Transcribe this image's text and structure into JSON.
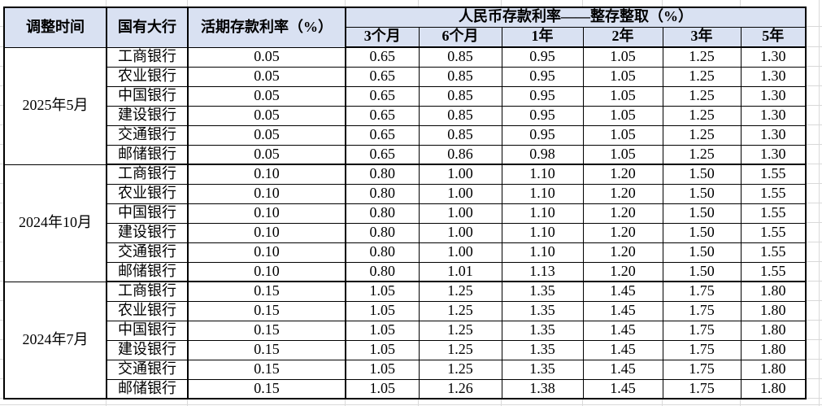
{
  "chart_data": {
    "type": "table",
    "title": "",
    "header_group": "人民币存款利率——整存整取（%）",
    "columns": [
      "调整时间",
      "国有大行",
      "活期存款利率（%）",
      "3个月",
      "6个月",
      "1年",
      "2年",
      "3年",
      "5年"
    ],
    "groups": [
      {
        "period": "2025年5月",
        "rows": [
          {
            "bank": "工商银行",
            "demand": "0.05",
            "terms": [
              "0.65",
              "0.85",
              "0.95",
              "1.05",
              "1.25",
              "1.30"
            ]
          },
          {
            "bank": "农业银行",
            "demand": "0.05",
            "terms": [
              "0.65",
              "0.85",
              "0.95",
              "1.05",
              "1.25",
              "1.30"
            ]
          },
          {
            "bank": "中国银行",
            "demand": "0.05",
            "terms": [
              "0.65",
              "0.85",
              "0.95",
              "1.05",
              "1.25",
              "1.30"
            ]
          },
          {
            "bank": "建设银行",
            "demand": "0.05",
            "terms": [
              "0.65",
              "0.85",
              "0.95",
              "1.05",
              "1.25",
              "1.30"
            ]
          },
          {
            "bank": "交通银行",
            "demand": "0.05",
            "terms": [
              "0.65",
              "0.85",
              "0.95",
              "1.05",
              "1.25",
              "1.30"
            ]
          },
          {
            "bank": "邮储银行",
            "demand": "0.05",
            "terms": [
              "0.65",
              "0.86",
              "0.98",
              "1.05",
              "1.25",
              "1.30"
            ]
          }
        ]
      },
      {
        "period": "2024年10月",
        "rows": [
          {
            "bank": "工商银行",
            "demand": "0.10",
            "terms": [
              "0.80",
              "1.00",
              "1.10",
              "1.20",
              "1.50",
              "1.55"
            ]
          },
          {
            "bank": "农业银行",
            "demand": "0.10",
            "terms": [
              "0.80",
              "1.00",
              "1.10",
              "1.20",
              "1.50",
              "1.55"
            ]
          },
          {
            "bank": "中国银行",
            "demand": "0.10",
            "terms": [
              "0.80",
              "1.00",
              "1.10",
              "1.20",
              "1.50",
              "1.55"
            ]
          },
          {
            "bank": "建设银行",
            "demand": "0.10",
            "terms": [
              "0.80",
              "1.00",
              "1.10",
              "1.20",
              "1.50",
              "1.55"
            ]
          },
          {
            "bank": "交通银行",
            "demand": "0.10",
            "terms": [
              "0.80",
              "1.00",
              "1.10",
              "1.20",
              "1.50",
              "1.55"
            ]
          },
          {
            "bank": "邮储银行",
            "demand": "0.10",
            "terms": [
              "0.80",
              "1.01",
              "1.13",
              "1.20",
              "1.50",
              "1.55"
            ]
          }
        ]
      },
      {
        "period": "2024年7月",
        "rows": [
          {
            "bank": "工商银行",
            "demand": "0.15",
            "terms": [
              "1.05",
              "1.25",
              "1.35",
              "1.45",
              "1.75",
              "1.80"
            ]
          },
          {
            "bank": "农业银行",
            "demand": "0.15",
            "terms": [
              "1.05",
              "1.25",
              "1.35",
              "1.45",
              "1.75",
              "1.80"
            ]
          },
          {
            "bank": "中国银行",
            "demand": "0.15",
            "terms": [
              "1.05",
              "1.25",
              "1.35",
              "1.45",
              "1.75",
              "1.80"
            ]
          },
          {
            "bank": "建设银行",
            "demand": "0.15",
            "terms": [
              "1.05",
              "1.25",
              "1.35",
              "1.45",
              "1.75",
              "1.80"
            ]
          },
          {
            "bank": "交通银行",
            "demand": "0.15",
            "terms": [
              "1.05",
              "1.25",
              "1.35",
              "1.45",
              "1.75",
              "1.80"
            ]
          },
          {
            "bank": "邮储银行",
            "demand": "0.15",
            "terms": [
              "1.05",
              "1.26",
              "1.38",
              "1.45",
              "1.75",
              "1.80"
            ]
          }
        ]
      }
    ],
    "colors": {
      "header_bg": "#d9e1f2",
      "border": "#000000",
      "text": "#000000",
      "faint_grid": "#d9d9d9"
    }
  }
}
